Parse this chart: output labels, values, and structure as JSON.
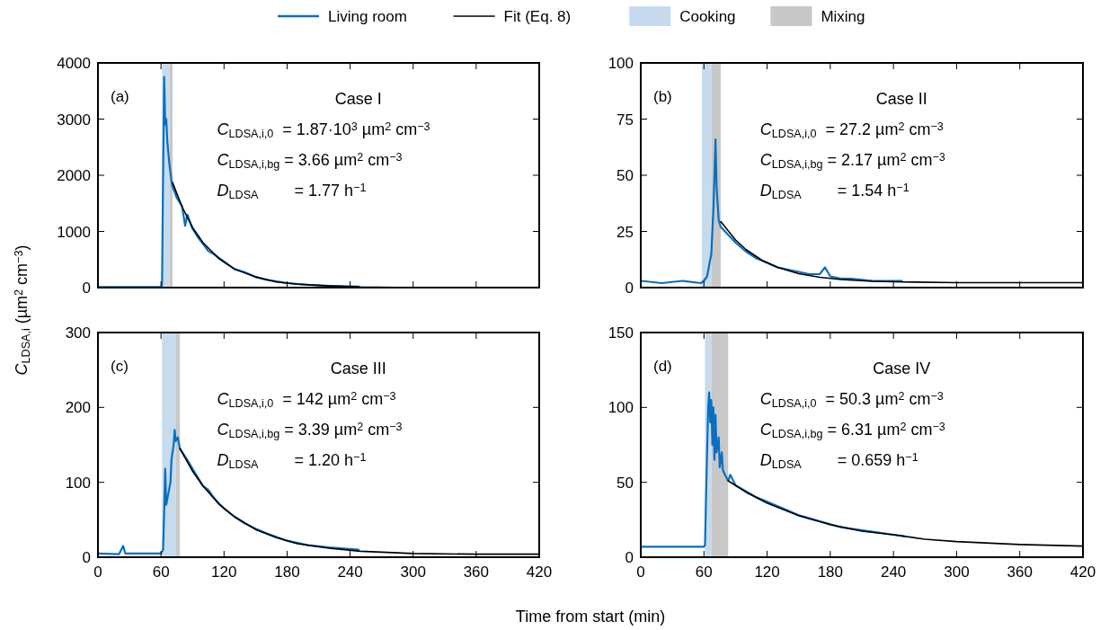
{
  "chart_data": [
    {
      "type": "line",
      "ylabel": "C$_{LDSA,i}$ (µm$^{2}$ cm$^{−3}$)",
      "annotations": [
        "(a)",
        "Case I",
        "C$_{LDSA,i,0}$  = 1.87·10$^{3}$ µm$^{2}$ cm$^{−3}$",
        "C$_{LDSA,i,bg}$ = 3.66 µm$^{2}$ cm$^{−3}$",
        "D$_{LDSA}$        = 1.77 h$^{−1}$"
      ],
      "legend": "top",
      "tick_labels": "y",
      "xlim": [
        0,
        420
      ],
      "xticks": [
        0,
        60,
        120,
        180,
        240,
        300,
        360,
        420
      ],
      "ylim": [
        0,
        4000
      ],
      "yticks": [
        0,
        1000,
        2000,
        3000,
        4000
      ],
      "bands": [
        {
          "axis": "x",
          "from": 61,
          "to": 68,
          "label": "Cooking",
          "color": "#c6dcee"
        },
        {
          "axis": "x",
          "from": 68,
          "to": 71,
          "label": "Mixing",
          "color": "#c8c8c8"
        }
      ],
      "series": [
        {
          "name": "Living room",
          "color": "#0a6fc0",
          "x": [
            0,
            30,
            60,
            61,
            62,
            63,
            64,
            65,
            66,
            68,
            70,
            71,
            75,
            80,
            83,
            85,
            90,
            95,
            100,
            105,
            110,
            120,
            130,
            140,
            150,
            160,
            170,
            180,
            200,
            220,
            248
          ],
          "values": [
            10,
            10,
            10,
            50,
            2000,
            3750,
            2900,
            3000,
            2600,
            2200,
            1900,
            1800,
            1600,
            1450,
            1100,
            1300,
            1050,
            900,
            780,
            650,
            600,
            460,
            330,
            270,
            190,
            140,
            110,
            80,
            50,
            30,
            20
          ]
        },
        {
          "name": "Fit (Eq. 8)",
          "color": "#000000",
          "x": [
            71,
            80,
            90,
            100,
            115,
            130,
            150,
            170,
            190,
            220,
            250,
            300,
            360,
            420
          ],
          "values": [
            1870,
            1440,
            1070,
            800,
            520,
            330,
            190,
            100,
            60,
            30,
            10,
            0,
            0,
            0
          ]
        }
      ]
    },
    {
      "type": "line",
      "annotations": [
        "(b)",
        "Case II",
        "C$_{LDSA,i,0}$  = 27.2 µm$^{2}$ cm$^{−3}$",
        "C$_{LDSA,i,bg}$ = 2.17 µm$^{2}$ cm$^{−3}$",
        "D$_{LDSA}$        = 1.54 h$^{−1}$"
      ],
      "tick_labels": "y",
      "xlim": [
        0,
        420
      ],
      "xticks": [
        0,
        60,
        120,
        180,
        240,
        300,
        360,
        420
      ],
      "ylim": [
        0,
        100
      ],
      "yticks": [
        0,
        25,
        50,
        75,
        100
      ],
      "bands": [
        {
          "axis": "x",
          "from": 58,
          "to": 67,
          "color": "#c6dcee"
        },
        {
          "axis": "x",
          "from": 67,
          "to": 76,
          "color": "#c8c8c8"
        }
      ],
      "series": [
        {
          "color": "#0a6fc0",
          "x": [
            0,
            20,
            40,
            57,
            60,
            63,
            65,
            67,
            69,
            70,
            71,
            72,
            74,
            76,
            80,
            90,
            100,
            110,
            120,
            130,
            140,
            150,
            160,
            170,
            175,
            180,
            190,
            200,
            220,
            240,
            248
          ],
          "values": [
            3,
            2,
            3,
            2,
            3,
            5,
            10,
            15,
            35,
            50,
            66,
            45,
            30,
            27,
            25,
            20,
            16,
            13,
            11,
            9,
            8,
            7,
            6,
            6,
            9,
            5,
            4,
            4,
            3,
            3,
            3
          ]
        },
        {
          "color": "#000000",
          "x": [
            76,
            90,
            100,
            115,
            130,
            150,
            170,
            190,
            220,
            250,
            300,
            360,
            420
          ],
          "values": [
            29.4,
            21.2,
            16.9,
            12.2,
            9.0,
            6.2,
            4.6,
            3.6,
            2.8,
            2.5,
            2.2,
            2.2,
            2.2
          ]
        }
      ]
    },
    {
      "type": "line",
      "xlabel": "Time from start (min)",
      "annotations": [
        "(c)",
        "Case III",
        "C$_{LDSA,i,0}$  = 142 µm$^{2}$ cm$^{−3}$",
        "C$_{LDSA,i,bg}$ = 3.39 µm$^{2}$ cm$^{−3}$",
        "D$_{LDSA}$        = 1.20 h$^{−1}$"
      ],
      "xlim": [
        0,
        420
      ],
      "xticks": [
        0,
        60,
        120,
        180,
        240,
        300,
        360,
        420
      ],
      "ylim": [
        0,
        300
      ],
      "yticks": [
        0,
        100,
        200,
        300
      ],
      "bands": [
        {
          "axis": "x",
          "from": 61,
          "to": 74,
          "color": "#c6dcee"
        },
        {
          "axis": "x",
          "from": 74,
          "to": 78,
          "color": "#c8c8c8"
        }
      ],
      "series": [
        {
          "color": "#0a6fc0",
          "x": [
            0,
            20,
            24,
            26,
            40,
            60,
            62,
            63,
            64,
            65,
            67,
            69,
            70,
            72,
            73,
            74,
            76,
            78,
            85,
            90,
            100,
            105,
            110,
            115,
            120,
            130,
            140,
            150,
            160,
            170,
            180,
            190,
            200,
            220,
            248
          ],
          "values": [
            5,
            4,
            15,
            5,
            5,
            5,
            10,
            60,
            118,
            70,
            85,
            100,
            130,
            150,
            170,
            155,
            160,
            145,
            130,
            118,
            95,
            90,
            80,
            72,
            65,
            54,
            45,
            38,
            32,
            27,
            22,
            19,
            16,
            13,
            10
          ]
        },
        {
          "color": "#000000",
          "x": [
            78,
            90,
            100,
            115,
            130,
            150,
            170,
            190,
            220,
            250,
            300,
            360,
            420
          ],
          "values": [
            145,
            115,
            95,
            71,
            54,
            37,
            26,
            18,
            12,
            8,
            5,
            4,
            4
          ]
        }
      ]
    },
    {
      "type": "line",
      "annotations": [
        "(d)",
        "Case IV",
        "C$_{LDSA,i,0}$  = 50.3 µm$^{2}$ cm$^{−3}$",
        "C$_{LDSA,i,bg}$ = 6.31 µm$^{2}$ cm$^{−3}$",
        "D$_{LDSA}$        = 0.659 h$^{−1}$"
      ],
      "xlim": [
        0,
        420
      ],
      "xticks": [
        0,
        60,
        120,
        180,
        240,
        300,
        360,
        420
      ],
      "ylim": [
        0,
        150
      ],
      "yticks": [
        0,
        50,
        100,
        150
      ],
      "bands": [
        {
          "axis": "x",
          "from": 61,
          "to": 67,
          "color": "#c6dcee"
        },
        {
          "axis": "x",
          "from": 67,
          "to": 83,
          "color": "#c8c8c8"
        }
      ],
      "series": [
        {
          "color": "#0a6fc0",
          "x": [
            0,
            30,
            60,
            61,
            62,
            63,
            64,
            65,
            66,
            67,
            68,
            69,
            70,
            71,
            72,
            74,
            75,
            77,
            78,
            80,
            83,
            85,
            90,
            100,
            110,
            120,
            130,
            140,
            150,
            160,
            170,
            180,
            190,
            200,
            220,
            240,
            250
          ],
          "values": [
            7,
            7,
            7,
            8,
            40,
            70,
            100,
            110,
            90,
            105,
            75,
            100,
            65,
            95,
            70,
            80,
            60,
            70,
            58,
            55,
            51,
            55,
            48,
            44,
            40,
            37,
            34,
            31,
            28,
            26,
            24,
            22,
            20,
            19,
            17,
            15,
            14
          ]
        },
        {
          "color": "#000000",
          "x": [
            83,
            100,
            120,
            150,
            180,
            210,
            240,
            270,
            300,
            360,
            420
          ],
          "values": [
            51,
            43.4,
            36.1,
            27.7,
            21.7,
            17.4,
            15,
            12,
            10.4,
            8.5,
            7.4
          ]
        }
      ]
    }
  ]
}
